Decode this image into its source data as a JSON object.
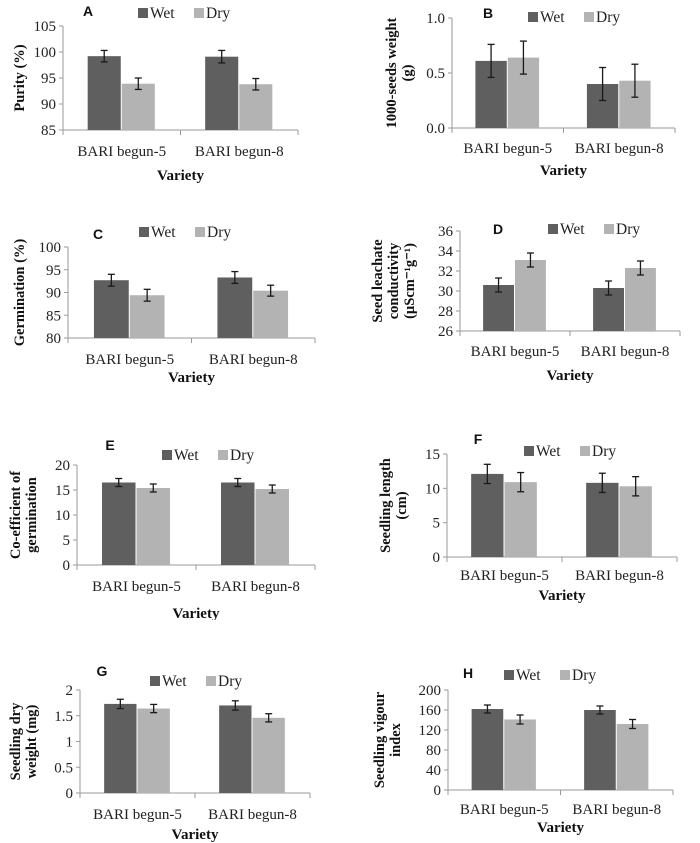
{
  "legend": {
    "wet": "Wet",
    "dry": "Dry"
  },
  "colors": {
    "wet": "#5f5f5f",
    "dry": "#b3b3b3",
    "axis": "#9a9a9a",
    "error": "#1a1a1a"
  },
  "chart_data": [
    {
      "type": "bar",
      "panel": "A",
      "categories": [
        "BARI begun-5",
        "BARI begun-8"
      ],
      "xlabel": "Variety",
      "ylabel": [
        "Purity (%)"
      ],
      "ylim": [
        85,
        105
      ],
      "yticks": [
        "85",
        "90",
        "95",
        "100",
        "105"
      ],
      "tick_values": [
        85,
        90,
        95,
        100,
        105
      ],
      "series": [
        {
          "name": "Wet",
          "values": [
            99.2,
            99.1
          ],
          "errors": [
            1.1,
            1.2
          ]
        },
        {
          "name": "Dry",
          "values": [
            93.9,
            93.8
          ],
          "errors": [
            1.1,
            1.1
          ]
        }
      ],
      "legend_position": "top",
      "grid": false
    },
    {
      "type": "bar",
      "panel": "B",
      "categories": [
        "BARI begun-5",
        "BARI begun-8"
      ],
      "xlabel": "Variety",
      "ylabel": [
        "1000-seeds weight",
        "(g)"
      ],
      "ylim": [
        0,
        1
      ],
      "yticks": [
        "0.0",
        "0.5",
        "1.0"
      ],
      "tick_values": [
        0,
        0.5,
        1.0
      ],
      "series": [
        {
          "name": "Wet",
          "values": [
            0.61,
            0.4
          ],
          "errors": [
            0.15,
            0.15
          ]
        },
        {
          "name": "Dry",
          "values": [
            0.64,
            0.43
          ],
          "errors": [
            0.15,
            0.15
          ]
        }
      ],
      "legend_position": "top",
      "grid": false
    },
    {
      "type": "bar",
      "panel": "C",
      "categories": [
        "BARI begun-5",
        "BARI begun-8"
      ],
      "xlabel": "Variety",
      "ylabel": [
        "Germination (%)"
      ],
      "ylim": [
        80,
        100
      ],
      "yticks": [
        "80",
        "85",
        "90",
        "95",
        "100"
      ],
      "tick_values": [
        80,
        85,
        90,
        95,
        100
      ],
      "series": [
        {
          "name": "Wet",
          "values": [
            92.7,
            93.3
          ],
          "errors": [
            1.3,
            1.3
          ]
        },
        {
          "name": "Dry",
          "values": [
            89.4,
            90.4
          ],
          "errors": [
            1.3,
            1.2
          ]
        }
      ],
      "legend_position": "top",
      "grid": false
    },
    {
      "type": "bar",
      "panel": "D",
      "categories": [
        "BARI begun-5",
        "BARI begun-8"
      ],
      "xlabel": "Variety",
      "ylabel": [
        "Seed leachate",
        "conductivity",
        "(µScm⁻¹g⁻¹)"
      ],
      "ylim": [
        26,
        36
      ],
      "yticks": [
        "26",
        "28",
        "30",
        "32",
        "34",
        "36"
      ],
      "tick_values": [
        26,
        28,
        30,
        32,
        34,
        36
      ],
      "series": [
        {
          "name": "Wet",
          "values": [
            30.6,
            30.3
          ],
          "errors": [
            0.7,
            0.7
          ]
        },
        {
          "name": "Dry",
          "values": [
            33.1,
            32.3
          ],
          "errors": [
            0.7,
            0.7
          ]
        }
      ],
      "legend_position": "top",
      "grid": false
    },
    {
      "type": "bar",
      "panel": "E",
      "categories": [
        "BARI begun-5",
        "BARI begun-8"
      ],
      "xlabel": "Variety",
      "ylabel": [
        "Co-efficient of",
        "germination"
      ],
      "ylim": [
        0,
        20
      ],
      "yticks": [
        "0",
        "5",
        "10",
        "15",
        "20"
      ],
      "tick_values": [
        0,
        5,
        10,
        15,
        20
      ],
      "series": [
        {
          "name": "Wet",
          "values": [
            16.5,
            16.5
          ],
          "errors": [
            0.8,
            0.8
          ]
        },
        {
          "name": "Dry",
          "values": [
            15.4,
            15.2
          ],
          "errors": [
            0.8,
            0.8
          ]
        }
      ],
      "legend_position": "top",
      "grid": false
    },
    {
      "type": "bar",
      "panel": "F",
      "categories": [
        "BARI begun-5",
        "BARI begun-8"
      ],
      "xlabel": "Variety",
      "ylabel": [
        "Seedling length",
        "(cm)"
      ],
      "ylim": [
        0,
        15
      ],
      "yticks": [
        "0",
        "5",
        "10",
        "15"
      ],
      "tick_values": [
        0,
        5,
        10,
        15
      ],
      "series": [
        {
          "name": "Wet",
          "values": [
            12.1,
            10.8
          ],
          "errors": [
            1.4,
            1.4
          ]
        },
        {
          "name": "Dry",
          "values": [
            10.9,
            10.3
          ],
          "errors": [
            1.4,
            1.4
          ]
        }
      ],
      "legend_position": "top",
      "grid": false
    },
    {
      "type": "bar",
      "panel": "G",
      "categories": [
        "BARI begun-5",
        "BARI begun-8"
      ],
      "xlabel": "Variety",
      "ylabel": [
        "Seedling dry",
        "weight (mg)"
      ],
      "ylim": [
        0,
        2
      ],
      "yticks": [
        "0",
        "0.5",
        "1",
        "1.5",
        "2"
      ],
      "tick_values": [
        0,
        0.5,
        1,
        1.5,
        2
      ],
      "series": [
        {
          "name": "Wet",
          "values": [
            1.73,
            1.7
          ],
          "errors": [
            0.09,
            0.09
          ]
        },
        {
          "name": "Dry",
          "values": [
            1.64,
            1.46
          ],
          "errors": [
            0.08,
            0.08
          ]
        }
      ],
      "legend_position": "top",
      "grid": false
    },
    {
      "type": "bar",
      "panel": "H",
      "categories": [
        "BARI begun-5",
        "BARI begun-8"
      ],
      "xlabel": "Variety",
      "ylabel": [
        "Seedling vigour",
        "index"
      ],
      "ylim": [
        0,
        200
      ],
      "yticks": [
        "0",
        "40",
        "80",
        "120",
        "160",
        "200"
      ],
      "tick_values": [
        0,
        40,
        80,
        120,
        160,
        200
      ],
      "series": [
        {
          "name": "Wet",
          "values": [
            162,
            160
          ],
          "errors": [
            8,
            8
          ]
        },
        {
          "name": "Dry",
          "values": [
            141,
            132
          ],
          "errors": [
            9,
            9
          ]
        }
      ],
      "legend_position": "top",
      "grid": false
    }
  ]
}
